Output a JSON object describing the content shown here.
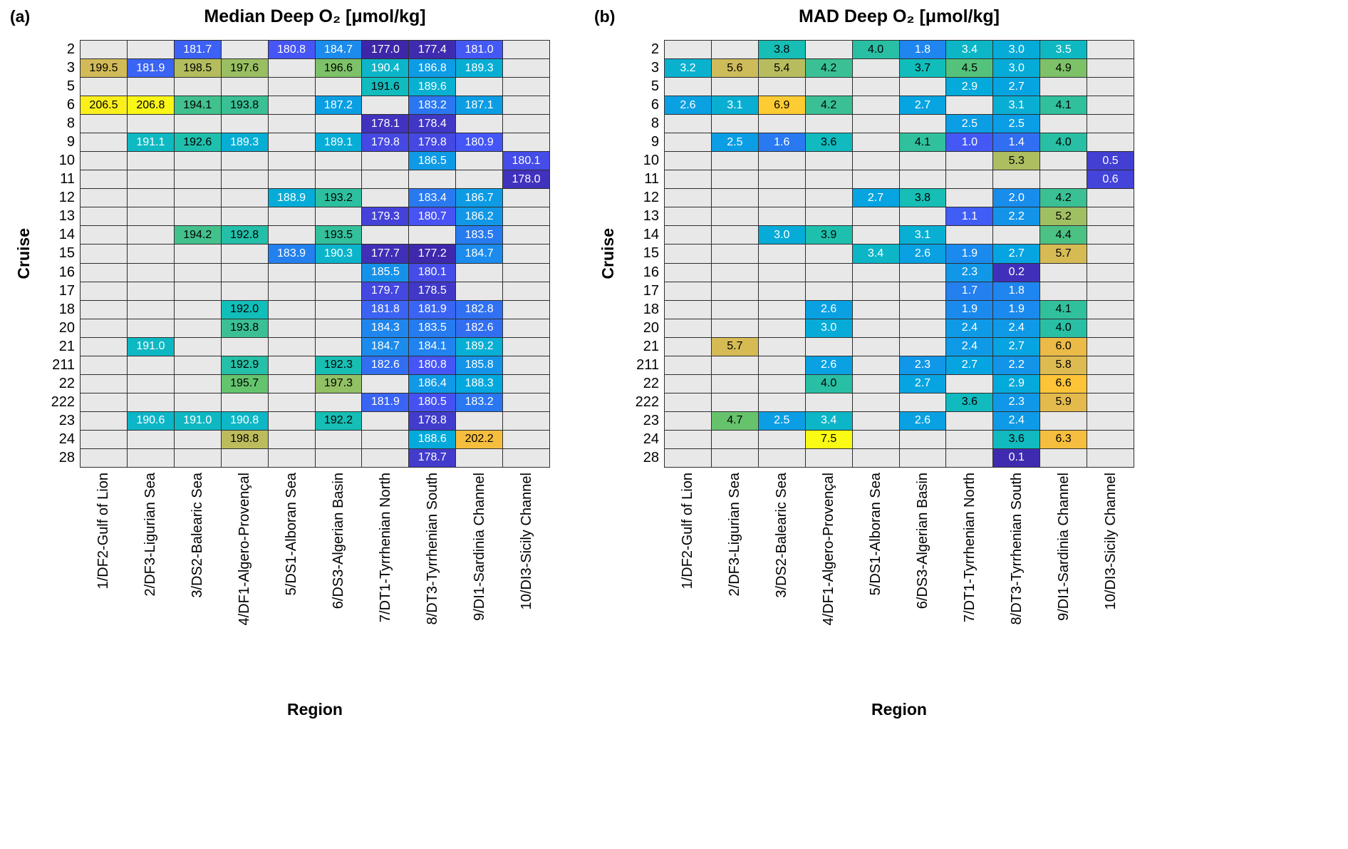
{
  "colors": {
    "background": "#ffffff",
    "empty_cell": "#e8e8e8",
    "grid_line": "#2e2e2e",
    "parula_stops": [
      [
        0.0,
        62,
        38,
        168
      ],
      [
        0.125,
        71,
        84,
        246
      ],
      [
        0.25,
        28,
        137,
        238
      ],
      [
        0.375,
        3,
        168,
        223
      ],
      [
        0.5,
        18,
        190,
        185
      ],
      [
        0.625,
        101,
        195,
        108
      ],
      [
        0.75,
        209,
        187,
        89
      ],
      [
        0.81,
        240,
        186,
        67
      ],
      [
        0.875,
        254,
        195,
        56
      ],
      [
        0.94,
        252,
        207,
        48
      ],
      [
        1.0,
        249,
        251,
        21
      ]
    ]
  },
  "chart_data": [
    {
      "type": "heatmap",
      "panel": "(a)",
      "title": "Median Deep O₂ [μmol/kg]",
      "xlabel": "Region",
      "ylabel": "Cruise",
      "colormap": "parula",
      "vmin": 177,
      "vmax": 207,
      "decimals": 1,
      "rows": [
        "2",
        "3",
        "5",
        "6",
        "8",
        "9",
        "10",
        "11",
        "12",
        "13",
        "14",
        "15",
        "16",
        "17",
        "18",
        "20",
        "21",
        "211",
        "22",
        "222",
        "23",
        "24",
        "28"
      ],
      "columns": [
        "1/DF2-Gulf of Lion",
        "2/DF3-Ligurian Sea",
        "3/DS2-Balearic Sea",
        "4/DF1-Algero-Provençal",
        "5/DS1-Alboran Sea",
        "6/DS3-Algerian Basin",
        "7/DT1-Tyrrhenian North",
        "8/DT3-Tyrrhenian South",
        "9/DI1-Sardinia Channel",
        "10/DI3-Sicily Channel"
      ],
      "values": [
        [
          null,
          null,
          181.7,
          null,
          180.8,
          184.7,
          177.0,
          177.4,
          181.0,
          null
        ],
        [
          199.5,
          181.9,
          198.5,
          197.6,
          null,
          196.6,
          190.4,
          186.8,
          189.3,
          null
        ],
        [
          null,
          null,
          null,
          null,
          null,
          null,
          191.6,
          189.6,
          null,
          null
        ],
        [
          206.5,
          206.8,
          194.1,
          193.8,
          null,
          187.2,
          null,
          183.2,
          187.1,
          null
        ],
        [
          null,
          null,
          null,
          null,
          null,
          null,
          178.1,
          178.4,
          null,
          null
        ],
        [
          null,
          191.1,
          192.6,
          189.3,
          null,
          189.1,
          179.8,
          179.8,
          180.9,
          null
        ],
        [
          null,
          null,
          null,
          null,
          null,
          null,
          null,
          186.5,
          null,
          180.1
        ],
        [
          null,
          null,
          null,
          null,
          null,
          null,
          null,
          null,
          null,
          178.0
        ],
        [
          null,
          null,
          null,
          null,
          188.9,
          193.2,
          null,
          183.4,
          186.7,
          null
        ],
        [
          null,
          null,
          null,
          null,
          null,
          null,
          179.3,
          180.7,
          186.2,
          null
        ],
        [
          null,
          null,
          194.2,
          192.8,
          null,
          193.5,
          null,
          null,
          183.5,
          null
        ],
        [
          null,
          null,
          null,
          null,
          183.9,
          190.3,
          177.7,
          177.2,
          184.7,
          null
        ],
        [
          null,
          null,
          null,
          null,
          null,
          null,
          185.5,
          180.1,
          null,
          null
        ],
        [
          null,
          null,
          null,
          null,
          null,
          null,
          179.7,
          178.5,
          null,
          null
        ],
        [
          null,
          null,
          null,
          192.0,
          null,
          null,
          181.8,
          181.9,
          182.8,
          null
        ],
        [
          null,
          null,
          null,
          193.8,
          null,
          null,
          184.3,
          183.5,
          182.6,
          null
        ],
        [
          null,
          191.0,
          null,
          null,
          null,
          null,
          184.7,
          184.1,
          189.2,
          null
        ],
        [
          null,
          null,
          null,
          192.9,
          null,
          192.3,
          182.6,
          180.8,
          185.8,
          null
        ],
        [
          null,
          null,
          null,
          195.7,
          null,
          197.3,
          null,
          186.4,
          188.3,
          null
        ],
        [
          null,
          null,
          null,
          null,
          null,
          null,
          181.9,
          180.5,
          183.2,
          null
        ],
        [
          null,
          190.6,
          191.0,
          190.8,
          null,
          192.2,
          null,
          178.8,
          null,
          null
        ],
        [
          null,
          null,
          null,
          198.8,
          null,
          null,
          null,
          188.6,
          202.2,
          null
        ],
        [
          null,
          null,
          null,
          null,
          null,
          null,
          null,
          178.7,
          null,
          null
        ]
      ]
    },
    {
      "type": "heatmap",
      "panel": "(b)",
      "title": "MAD Deep O₂ [μmol/kg]",
      "xlabel": "Region",
      "ylabel": "Cruise",
      "colormap": "parula",
      "vmin": 0,
      "vmax": 7.5,
      "decimals": 1,
      "rows": [
        "2",
        "3",
        "5",
        "6",
        "8",
        "9",
        "10",
        "11",
        "12",
        "13",
        "14",
        "15",
        "16",
        "17",
        "18",
        "20",
        "21",
        "211",
        "22",
        "222",
        "23",
        "24",
        "28"
      ],
      "columns": [
        "1/DF2-Gulf of Lion",
        "2/DF3-Ligurian Sea",
        "3/DS2-Balearic Sea",
        "4/DF1-Algero-Provençal",
        "5/DS1-Alboran Sea",
        "6/DS3-Algerian Basin",
        "7/DT1-Tyrrhenian North",
        "8/DT3-Tyrrhenian South",
        "9/DI1-Sardinia Channel",
        "10/DI3-Sicily Channel"
      ],
      "values": [
        [
          null,
          null,
          3.8,
          null,
          4.0,
          1.8,
          3.4,
          3.0,
          3.5,
          null
        ],
        [
          3.2,
          5.6,
          5.4,
          4.2,
          null,
          3.7,
          4.5,
          3.0,
          4.9,
          null
        ],
        [
          null,
          null,
          null,
          null,
          null,
          null,
          2.9,
          2.7,
          null,
          null
        ],
        [
          2.6,
          3.1,
          6.9,
          4.2,
          null,
          2.7,
          null,
          3.1,
          4.1,
          null
        ],
        [
          null,
          null,
          null,
          null,
          null,
          null,
          2.5,
          2.5,
          null,
          null
        ],
        [
          null,
          2.5,
          1.6,
          3.6,
          null,
          4.1,
          1.0,
          1.4,
          4.0,
          null
        ],
        [
          null,
          null,
          null,
          null,
          null,
          null,
          null,
          5.3,
          null,
          0.5
        ],
        [
          null,
          null,
          null,
          null,
          null,
          null,
          null,
          null,
          null,
          0.6
        ],
        [
          null,
          null,
          null,
          null,
          2.7,
          3.8,
          null,
          2.0,
          4.2,
          null
        ],
        [
          null,
          null,
          null,
          null,
          null,
          null,
          1.1,
          2.2,
          5.2,
          null
        ],
        [
          null,
          null,
          3.0,
          3.9,
          null,
          3.1,
          null,
          null,
          4.4,
          null
        ],
        [
          null,
          null,
          null,
          null,
          3.4,
          2.6,
          1.9,
          2.7,
          5.7,
          null
        ],
        [
          null,
          null,
          null,
          null,
          null,
          null,
          2.3,
          0.2,
          null,
          null
        ],
        [
          null,
          null,
          null,
          null,
          null,
          null,
          1.7,
          1.8,
          null,
          null
        ],
        [
          null,
          null,
          null,
          2.6,
          null,
          null,
          1.9,
          1.9,
          4.1,
          null
        ],
        [
          null,
          null,
          null,
          3.0,
          null,
          null,
          2.4,
          2.4,
          4.0,
          null
        ],
        [
          null,
          5.7,
          null,
          null,
          null,
          null,
          2.4,
          2.7,
          6.0,
          null
        ],
        [
          null,
          null,
          null,
          2.6,
          null,
          2.3,
          2.7,
          2.2,
          5.8,
          null
        ],
        [
          null,
          null,
          null,
          4.0,
          null,
          2.7,
          null,
          2.9,
          6.6,
          null
        ],
        [
          null,
          null,
          null,
          null,
          null,
          null,
          3.6,
          2.3,
          5.9,
          null
        ],
        [
          null,
          4.7,
          2.5,
          3.4,
          null,
          2.6,
          null,
          2.4,
          null,
          null
        ],
        [
          null,
          null,
          null,
          7.5,
          null,
          null,
          null,
          3.6,
          6.3,
          null
        ],
        [
          null,
          null,
          null,
          null,
          null,
          null,
          null,
          0.1,
          null,
          null
        ]
      ]
    }
  ]
}
